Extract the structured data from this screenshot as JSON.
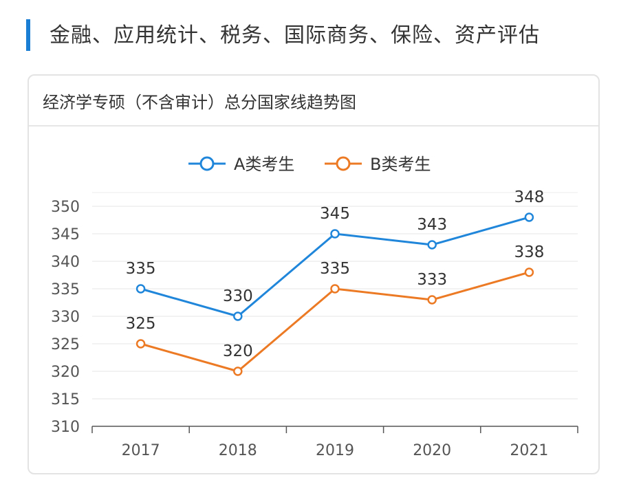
{
  "header": {
    "title": "金融、应用统计、税务、国际商务、保险、资产评估"
  },
  "card": {
    "title": "经济学专硕（不含审计）总分国家线趋势图"
  },
  "chart_data": {
    "type": "line",
    "title": "经济学专硕（不含审计）总分国家线趋势图",
    "categories": [
      "2017",
      "2018",
      "2019",
      "2020",
      "2021"
    ],
    "series": [
      {
        "name": "A类考生",
        "values": [
          335,
          330,
          345,
          343,
          348
        ],
        "color": "#1f86da"
      },
      {
        "name": "B类考生",
        "values": [
          325,
          320,
          335,
          333,
          338
        ],
        "color": "#ec7a25"
      }
    ],
    "ylim": [
      310,
      350
    ],
    "yticks": [
      310,
      315,
      320,
      325,
      330,
      335,
      340,
      345,
      350
    ],
    "xlabel": "",
    "ylabel": "",
    "grid": true,
    "legend": "top-center"
  }
}
